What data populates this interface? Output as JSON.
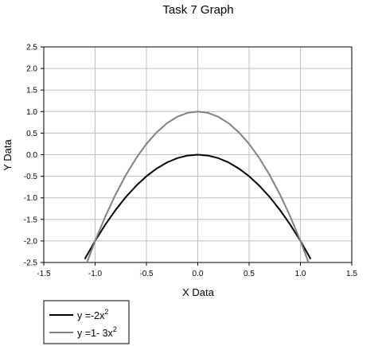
{
  "chart_data": {
    "type": "line",
    "title": "Task 7 Graph",
    "xlabel": "X Data",
    "ylabel": "Y Data",
    "xlim": [
      -1.5,
      1.5
    ],
    "ylim": [
      -2.5,
      2.5
    ],
    "xticks": [
      "-1.5",
      "-1.0",
      "-0.5",
      "0.0",
      "0.5",
      "1.0",
      "1.5"
    ],
    "yticks": [
      "2.5",
      "2.0",
      "1.5",
      "1.0",
      "0.5",
      "0.0",
      "-0.5",
      "-1.0",
      "-1.5",
      "-2.0",
      "-2.5"
    ],
    "grid": true,
    "legend_position": "bottom-left",
    "x": [
      -1.1,
      -1.0,
      -0.9,
      -0.8,
      -0.7,
      -0.6,
      -0.5,
      -0.4,
      -0.3,
      -0.2,
      -0.1,
      0.0,
      0.1,
      0.2,
      0.3,
      0.4,
      0.5,
      0.6,
      0.7,
      0.8,
      0.9,
      1.0,
      1.1
    ],
    "series": [
      {
        "name": "y =-2x",
        "name_sup": "2",
        "color": "#000000",
        "values": [
          -2.42,
          -2.0,
          -1.62,
          -1.28,
          -0.98,
          -0.72,
          -0.5,
          -0.32,
          -0.18,
          -0.08,
          -0.02,
          0.0,
          -0.02,
          -0.08,
          -0.18,
          -0.32,
          -0.5,
          -0.72,
          -0.98,
          -1.28,
          -1.62,
          -2.0,
          -2.42
        ]
      },
      {
        "name": "y =1- 3x",
        "name_sup": "2",
        "color": "#808080",
        "values": [
          -2.63,
          -2.0,
          -1.43,
          -0.92,
          -0.47,
          -0.08,
          0.25,
          0.52,
          0.73,
          0.88,
          0.97,
          1.0,
          0.97,
          0.88,
          0.73,
          0.52,
          0.25,
          -0.08,
          -0.47,
          -0.92,
          -1.43,
          -2.0,
          -2.63
        ]
      }
    ]
  }
}
